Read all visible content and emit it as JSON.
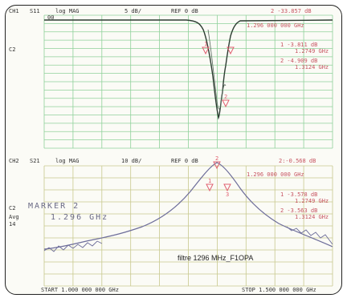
{
  "ch1": {
    "label": "CH1",
    "param": "S11",
    "format": "log MAG",
    "scale": "5 dB/",
    "ref": "REF 0 dB",
    "marker_line1": "2 -33.857 dB",
    "marker_freq": "1.296 000 000 GHz",
    "grid_tag": "00",
    "side": "C2",
    "m1_val": "1 -3.811 dB",
    "m1_freq": "1.2749 GHz",
    "m2_val": "2 -4.909 dB",
    "m2_freq": "1.3124 GHz"
  },
  "ch2": {
    "label": "CH2",
    "param": "S21",
    "format": "log MAG",
    "scale": "10 dB/",
    "ref": "REF 0 dB",
    "marker_line1": "2:-0.568 dB",
    "marker_freq": "1.296 000 000 GHz",
    "side": "C2",
    "avg": "Avg",
    "avg_n": "14",
    "m1_val": "1 -3.578 dB",
    "m1_freq": "1.2749 GHz",
    "m2_val": "2 -3.563 dB",
    "m2_freq": "1.3124 GHz",
    "marker_title": "MARKER 2",
    "marker_big_freq": "1.296 GHz",
    "annotation": "filtre 1296 MHz_F1OPA",
    "start": "START 1.000 000 000 GHz",
    "stop": "STOP 1.500 000 000 GHz"
  },
  "markers": {
    "ch1_labels": [
      "1",
      "2"
    ],
    "ch2_labels": [
      "1",
      "2",
      "3"
    ]
  },
  "colors": {
    "grid": "#8fd19a",
    "s11_trace": "#2d3d32",
    "s21_trace": "#6d6d9a",
    "marker": "#e06070"
  }
}
